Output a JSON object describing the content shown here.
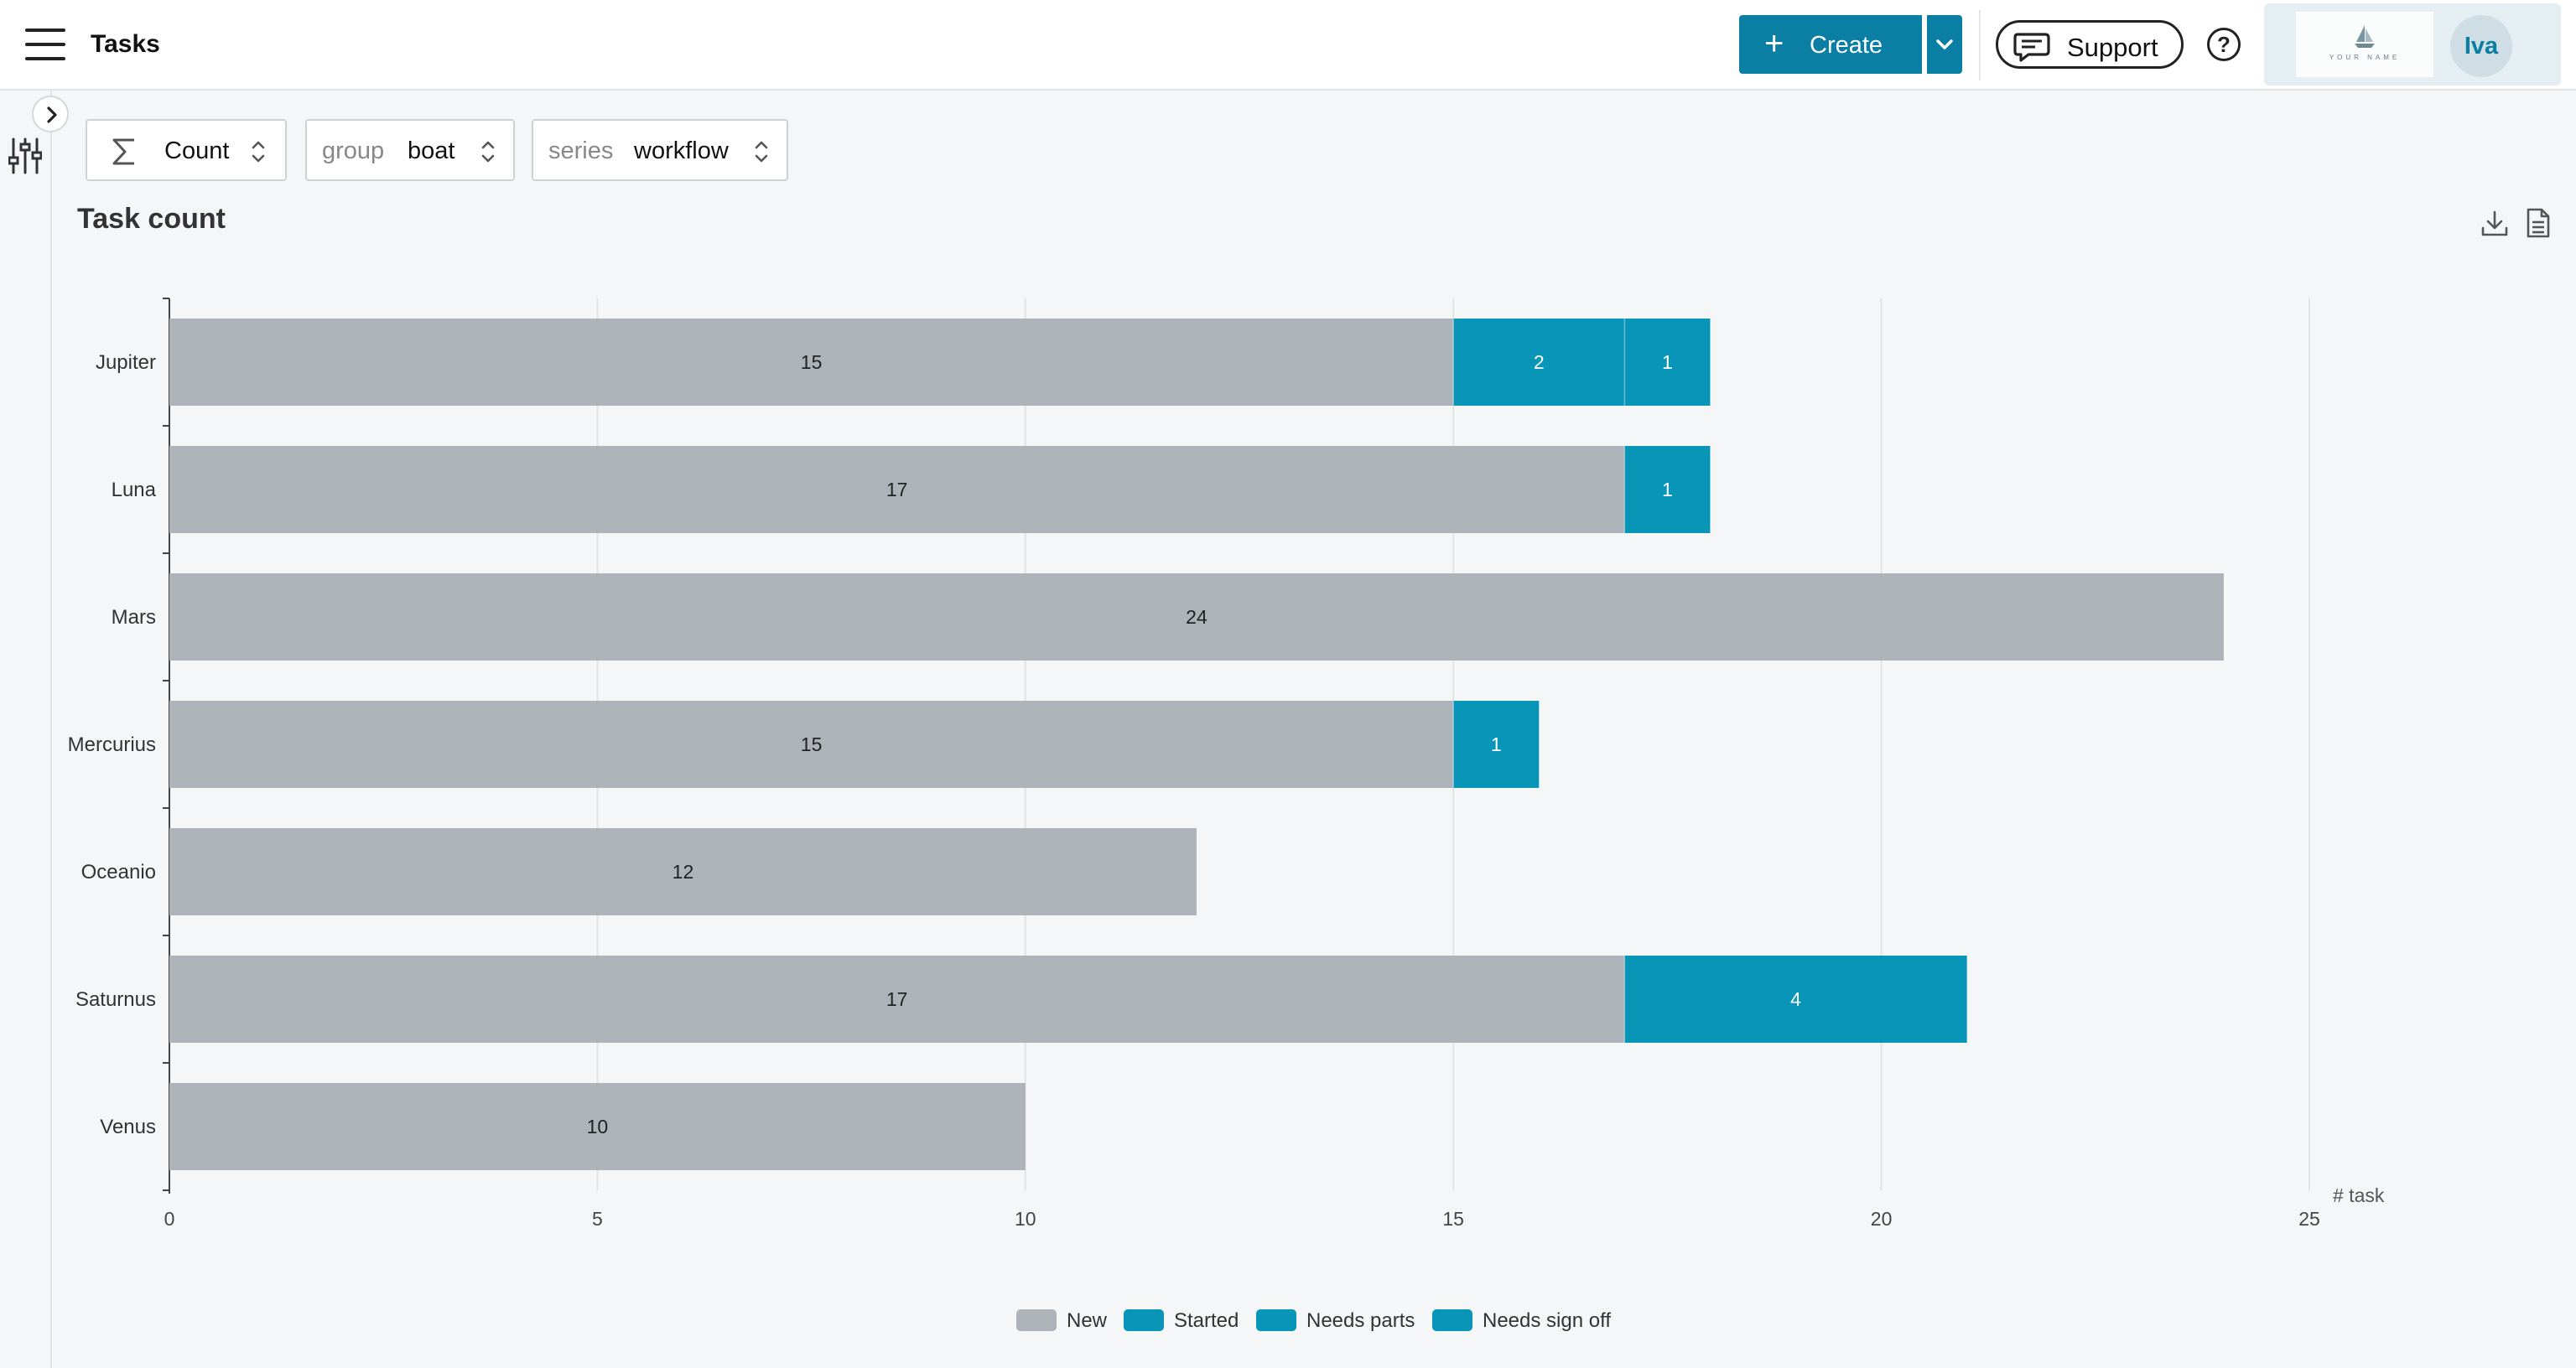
{
  "header": {
    "title": "Tasks",
    "create_label": "Create",
    "support_label": "Support",
    "help_label": "?",
    "logo_text": "YOUR NAME",
    "avatar_initials": "Iva"
  },
  "toolbar": {
    "measure": {
      "value": "Count"
    },
    "group": {
      "prefix": "group",
      "value": "boat"
    },
    "series": {
      "prefix": "series",
      "value": "workflow"
    }
  },
  "colors": {
    "new": "#adb3b9",
    "started": "#0895b8",
    "needs_parts": "#0895b8",
    "needs_sign_off": "#0895b8",
    "brand": "#0b7ea3"
  },
  "icons": {
    "menu": "hamburger-icon",
    "create": "plus-icon",
    "create_dropdown": "chevron-down-icon",
    "support": "chat-bubble-icon",
    "help": "question-circle-icon",
    "expand": "chevron-right-icon",
    "filter": "sliders-icon",
    "measure": "sigma-icon",
    "sort": "up-down-chevron-icon",
    "download": "download-icon",
    "document": "document-icon"
  },
  "chart_data": {
    "type": "bar",
    "orientation": "horizontal",
    "stacked": true,
    "title": "Task count",
    "xlabel": "# task",
    "ylabel": "",
    "xlim": [
      0,
      25
    ],
    "xticks": [
      0,
      5,
      10,
      15,
      20,
      25
    ],
    "grid": true,
    "legend_position": "bottom-center",
    "categories": [
      "Jupiter",
      "Luna",
      "Mars",
      "Mercurius",
      "Oceanio",
      "Saturnus",
      "Venus"
    ],
    "series": [
      {
        "name": "New",
        "color": "#adb3b9",
        "values": [
          15,
          17,
          24,
          15,
          12,
          17,
          10
        ]
      },
      {
        "name": "Started",
        "color": "#0895b8",
        "values": [
          2,
          0,
          0,
          1,
          0,
          4,
          0
        ]
      },
      {
        "name": "Needs parts",
        "color": "#0895b8",
        "values": [
          1,
          1,
          0,
          0,
          0,
          0,
          0
        ]
      },
      {
        "name": "Needs sign off",
        "color": "#0895b8",
        "values": [
          0,
          0,
          0,
          0,
          0,
          0,
          0
        ]
      }
    ]
  }
}
